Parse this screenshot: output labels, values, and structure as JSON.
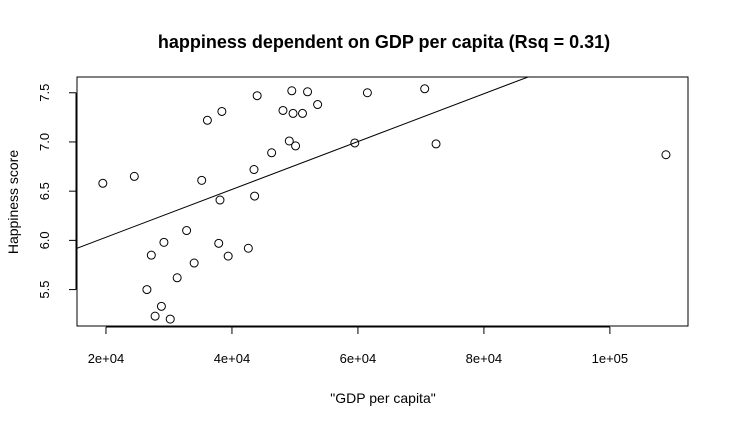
{
  "chart_data": {
    "type": "scatter",
    "title": "happiness dependent on GDP per capita (Rsq = 0.31)",
    "xlabel": "\"GDP per capita\"",
    "ylabel": "Happiness score",
    "xlim": [
      15400,
      112400
    ],
    "ylim": [
      5.13,
      7.66
    ],
    "x_ticks": [
      20000,
      40000,
      60000,
      80000,
      100000
    ],
    "x_tick_labels": [
      "2e+04",
      "4e+04",
      "6e+04",
      "8e+04",
      "1e+05"
    ],
    "y_ticks": [
      5.5,
      6.0,
      6.5,
      7.0,
      7.5
    ],
    "y_tick_labels": [
      "5.5",
      "6.0",
      "6.5",
      "7.0",
      "7.5"
    ],
    "grid": false,
    "regression_line": {
      "x1": 15400,
      "y1": 5.92,
      "x2": 87000,
      "y2": 7.66
    },
    "points": [
      {
        "x": 19500,
        "y": 6.58
      },
      {
        "x": 24500,
        "y": 6.65
      },
      {
        "x": 26500,
        "y": 5.5
      },
      {
        "x": 27200,
        "y": 5.85
      },
      {
        "x": 27800,
        "y": 5.23
      },
      {
        "x": 28800,
        "y": 5.33
      },
      {
        "x": 29200,
        "y": 5.98
      },
      {
        "x": 30200,
        "y": 5.2
      },
      {
        "x": 31300,
        "y": 5.62
      },
      {
        "x": 32800,
        "y": 6.1
      },
      {
        "x": 34000,
        "y": 5.77
      },
      {
        "x": 35200,
        "y": 6.61
      },
      {
        "x": 36100,
        "y": 7.22
      },
      {
        "x": 37900,
        "y": 5.97
      },
      {
        "x": 38100,
        "y": 6.41
      },
      {
        "x": 38400,
        "y": 7.31
      },
      {
        "x": 39400,
        "y": 5.84
      },
      {
        "x": 42600,
        "y": 5.92
      },
      {
        "x": 43500,
        "y": 6.72
      },
      {
        "x": 43600,
        "y": 6.45
      },
      {
        "x": 44000,
        "y": 7.47
      },
      {
        "x": 46300,
        "y": 6.89
      },
      {
        "x": 48100,
        "y": 7.32
      },
      {
        "x": 49100,
        "y": 7.01
      },
      {
        "x": 49500,
        "y": 7.52
      },
      {
        "x": 49700,
        "y": 7.29
      },
      {
        "x": 50100,
        "y": 6.96
      },
      {
        "x": 51200,
        "y": 7.29
      },
      {
        "x": 52000,
        "y": 7.51
      },
      {
        "x": 53600,
        "y": 7.38
      },
      {
        "x": 59500,
        "y": 6.99
      },
      {
        "x": 61500,
        "y": 7.5
      },
      {
        "x": 70600,
        "y": 7.54
      },
      {
        "x": 72400,
        "y": 6.98
      },
      {
        "x": 108900,
        "y": 6.87
      }
    ]
  }
}
